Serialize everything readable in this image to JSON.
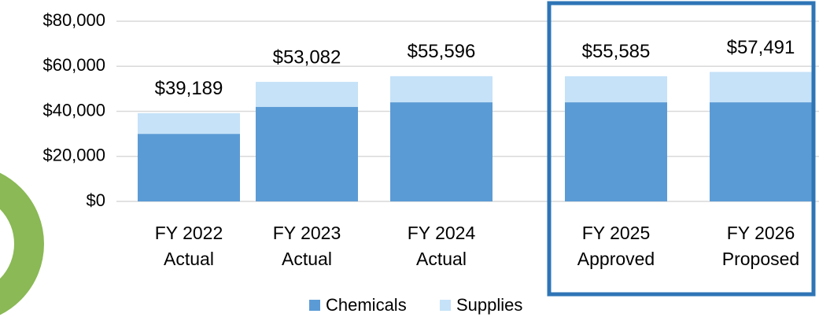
{
  "chart_data": {
    "type": "stacked_bar",
    "categories": [
      [
        "FY 2022",
        "Actual"
      ],
      [
        "FY 2023",
        "Actual"
      ],
      [
        "FY 2024",
        "Actual"
      ],
      [
        "FY 2025",
        "Approved"
      ],
      [
        "FY 2026",
        "Proposed"
      ]
    ],
    "series": [
      {
        "name": "Chemicals",
        "color": "#5b9bd5",
        "values": [
          30000,
          42000,
          44000,
          44000,
          44000
        ]
      },
      {
        "name": "Supplies",
        "color": "#c5e2f8",
        "values": [
          9189,
          11082,
          11596,
          11585,
          13491
        ]
      }
    ],
    "totals": [
      39189,
      53082,
      55596,
      55585,
      57491
    ],
    "total_labels": [
      "$39,189",
      "$53,082",
      "$55,596",
      "$55,585",
      "$57,491"
    ],
    "ylim": [
      0,
      80000
    ],
    "yticks": [
      {
        "value": 0,
        "label": "$0"
      },
      {
        "value": 20000,
        "label": "$20,000"
      },
      {
        "value": 40000,
        "label": "$40,000"
      },
      {
        "value": 60000,
        "label": "$60,000"
      },
      {
        "value": 80000,
        "label": "$80,000"
      }
    ],
    "grid": true,
    "legend": "bottom"
  }
}
